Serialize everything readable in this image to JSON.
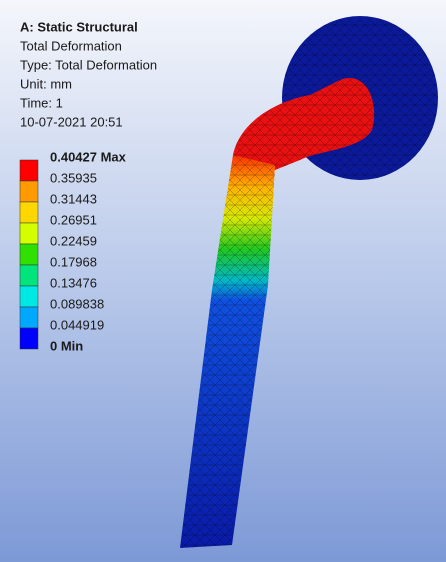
{
  "header": {
    "title": "A: Static Structural",
    "lines": [
      "Total Deformation",
      "Type: Total Deformation",
      "Unit: mm",
      "Time: 1",
      "10-07-2021 20:51"
    ]
  },
  "legend": {
    "labels": [
      "0.40427 Max",
      "0.35935",
      "0.31443",
      "0.26951",
      "0.22459",
      "0.17968",
      "0.13476",
      "0.089838",
      "0.044919",
      "0 Min"
    ],
    "colors": [
      "#ff0000",
      "#ff9b00",
      "#ffd700",
      "#d4ff00",
      "#2fe000",
      "#00e47c",
      "#00e8e4",
      "#00a8ff",
      "#0000ff"
    ]
  }
}
